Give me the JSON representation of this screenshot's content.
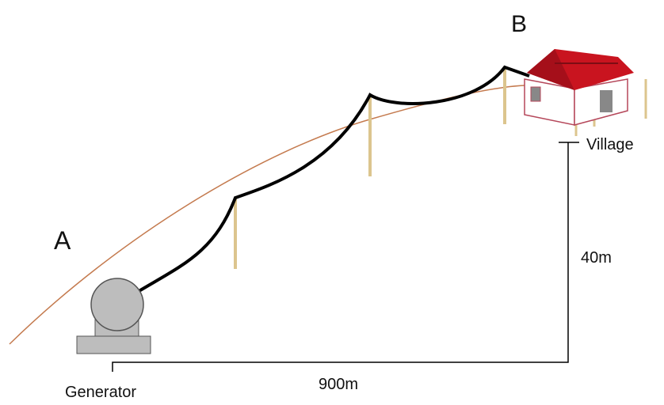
{
  "labels": {
    "point_a": "A",
    "point_b": "B",
    "village": "Village",
    "height": "40m",
    "distance": "900m",
    "generator": "Generator"
  }
}
